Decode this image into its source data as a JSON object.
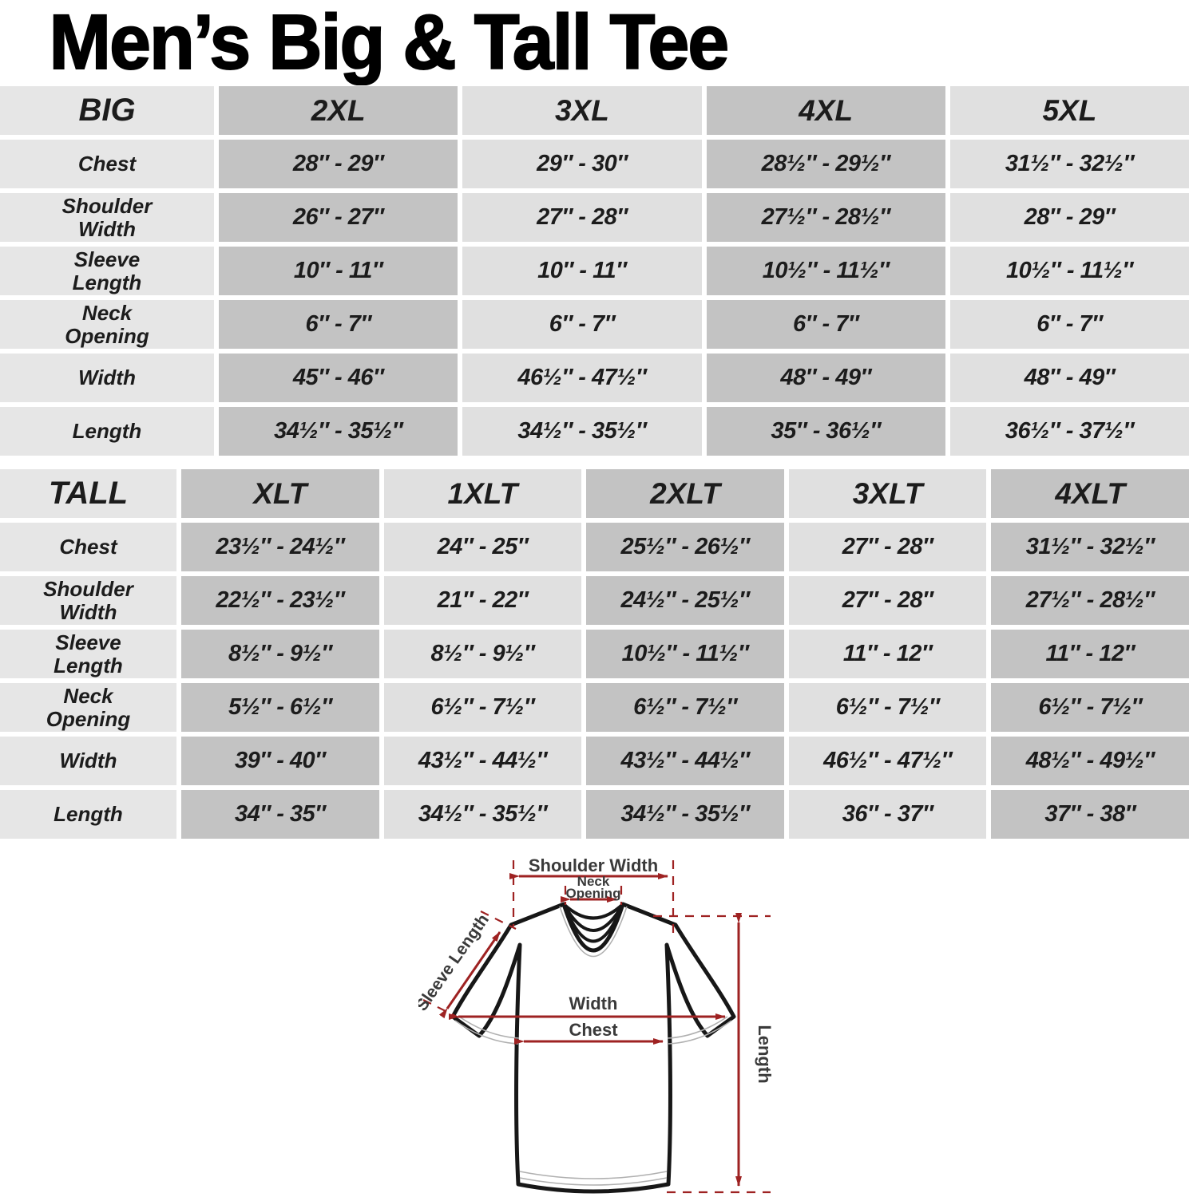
{
  "title": "Men’s Big & Tall Tee",
  "colors": {
    "arrow_red": "#9e2222",
    "cell_dark": "#c3c3c3",
    "cell_light": "#e0e0e0",
    "label_column": "#e6e6e6",
    "title_black": "#000000"
  },
  "tables": [
    {
      "name": "BIG",
      "sizes": [
        "2XL",
        "3XL",
        "4XL",
        "5XL"
      ],
      "rows": [
        {
          "label": "Chest",
          "values": [
            "28″ - 29″",
            "29″ - 30″",
            "28½″ - 29½″",
            "31½″ - 32½″"
          ]
        },
        {
          "label": "Shoulder\nWidth",
          "values": [
            "26″ - 27″",
            "27″ - 28″",
            "27½″ - 28½″",
            "28″ - 29″"
          ]
        },
        {
          "label": "Sleeve\nLength",
          "values": [
            "10″ - 11″",
            "10″ - 11″",
            "10½″ - 11½″",
            "10½″ - 11½″"
          ]
        },
        {
          "label": "Neck\nOpening",
          "values": [
            "6″ - 7″",
            "6″ - 7″",
            "6″ - 7″",
            "6″ - 7″"
          ]
        },
        {
          "label": "Width",
          "values": [
            "45″ - 46″",
            "46½″ - 47½″",
            "48″ - 49″",
            "48″ - 49″"
          ]
        },
        {
          "label": "Length",
          "values": [
            "34½″ - 35½″",
            "34½″ - 35½″",
            "35″ - 36½″",
            "36½″ - 37½″"
          ]
        }
      ]
    },
    {
      "name": "TALL",
      "sizes": [
        "XLT",
        "1XLT",
        "2XLT",
        "3XLT",
        "4XLT"
      ],
      "rows": [
        {
          "label": "Chest",
          "values": [
            "23½″ - 24½″",
            "24″ - 25″",
            "25½″ - 26½″",
            "27″ - 28″",
            "31½″ - 32½″"
          ]
        },
        {
          "label": "Shoulder\nWidth",
          "values": [
            "22½″ - 23½″",
            "21″ - 22″",
            "24½″ - 25½″",
            "27″ - 28″",
            "27½″ - 28½″"
          ]
        },
        {
          "label": "Sleeve\nLength",
          "values": [
            "8½″ - 9½″",
            "8½″ - 9½″",
            "10½″ - 11½″",
            "11″ - 12″",
            "11″ - 12″"
          ]
        },
        {
          "label": "Neck\nOpening",
          "values": [
            "5½″ - 6½″",
            "6½″ - 7½″",
            "6½″ - 7½″",
            "6½″ - 7½″",
            "6½″ - 7½″"
          ]
        },
        {
          "label": "Width",
          "values": [
            "39″ - 40″",
            "43½″ - 44½″",
            "43½″ - 44½″",
            "46½″ - 47½″",
            "48½″ - 49½″"
          ]
        },
        {
          "label": "Length",
          "values": [
            "34″ - 35″",
            "34½″ - 35½″",
            "34½″ - 35½″",
            "36″ - 37″",
            "37″ - 38″"
          ]
        }
      ]
    }
  ],
  "diagram": {
    "shoulder_width": "Shoulder Width",
    "neck_line1": "Neck",
    "neck_line2": "Opening",
    "sleeve_length": "Sleeve Length",
    "width": "Width",
    "chest": "Chest",
    "length": "Length"
  }
}
